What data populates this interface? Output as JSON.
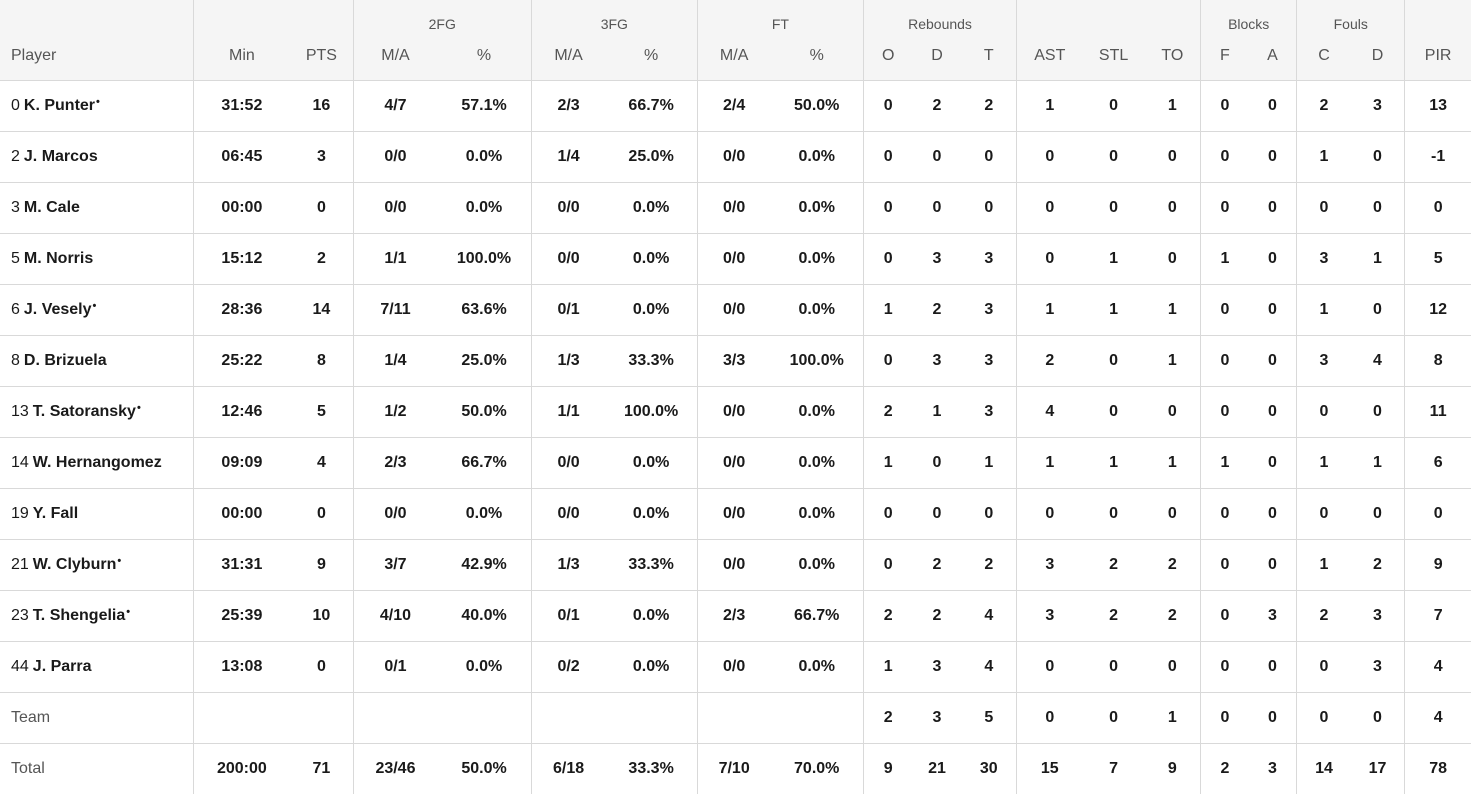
{
  "groups": {
    "g2fg": "2FG",
    "g3fg": "3FG",
    "gft": "FT",
    "greb": "Rebounds",
    "gblk": "Blocks",
    "gfoul": "Fouls"
  },
  "columns": [
    "Player",
    "Min",
    "PTS",
    "M/A",
    "%",
    "M/A",
    "%",
    "M/A",
    "%",
    "O",
    "D",
    "T",
    "AST",
    "STL",
    "TO",
    "F",
    "A",
    "C",
    "D",
    "PIR"
  ],
  "players": [
    {
      "num": "0",
      "name": "K. Punter",
      "starter": true,
      "stats": [
        "31:52",
        "16",
        "4/7",
        "57.1%",
        "2/3",
        "66.7%",
        "2/4",
        "50.0%",
        "0",
        "2",
        "2",
        "1",
        "0",
        "1",
        "0",
        "0",
        "2",
        "3",
        "13"
      ]
    },
    {
      "num": "2",
      "name": "J. Marcos",
      "starter": false,
      "stats": [
        "06:45",
        "3",
        "0/0",
        "0.0%",
        "1/4",
        "25.0%",
        "0/0",
        "0.0%",
        "0",
        "0",
        "0",
        "0",
        "0",
        "0",
        "0",
        "0",
        "1",
        "0",
        "-1"
      ]
    },
    {
      "num": "3",
      "name": "M. Cale",
      "starter": false,
      "stats": [
        "00:00",
        "0",
        "0/0",
        "0.0%",
        "0/0",
        "0.0%",
        "0/0",
        "0.0%",
        "0",
        "0",
        "0",
        "0",
        "0",
        "0",
        "0",
        "0",
        "0",
        "0",
        "0"
      ]
    },
    {
      "num": "5",
      "name": "M. Norris",
      "starter": false,
      "stats": [
        "15:12",
        "2",
        "1/1",
        "100.0%",
        "0/0",
        "0.0%",
        "0/0",
        "0.0%",
        "0",
        "3",
        "3",
        "0",
        "1",
        "0",
        "1",
        "0",
        "3",
        "1",
        "5"
      ]
    },
    {
      "num": "6",
      "name": "J. Vesely",
      "starter": true,
      "stats": [
        "28:36",
        "14",
        "7/11",
        "63.6%",
        "0/1",
        "0.0%",
        "0/0",
        "0.0%",
        "1",
        "2",
        "3",
        "1",
        "1",
        "1",
        "0",
        "0",
        "1",
        "0",
        "12"
      ]
    },
    {
      "num": "8",
      "name": "D. Brizuela",
      "starter": false,
      "stats": [
        "25:22",
        "8",
        "1/4",
        "25.0%",
        "1/3",
        "33.3%",
        "3/3",
        "100.0%",
        "0",
        "3",
        "3",
        "2",
        "0",
        "1",
        "0",
        "0",
        "3",
        "4",
        "8"
      ]
    },
    {
      "num": "13",
      "name": "T. Satoransky",
      "starter": true,
      "stats": [
        "12:46",
        "5",
        "1/2",
        "50.0%",
        "1/1",
        "100.0%",
        "0/0",
        "0.0%",
        "2",
        "1",
        "3",
        "4",
        "0",
        "0",
        "0",
        "0",
        "0",
        "0",
        "11"
      ]
    },
    {
      "num": "14",
      "name": "W. Hernangomez",
      "starter": false,
      "stats": [
        "09:09",
        "4",
        "2/3",
        "66.7%",
        "0/0",
        "0.0%",
        "0/0",
        "0.0%",
        "1",
        "0",
        "1",
        "1",
        "1",
        "1",
        "1",
        "0",
        "1",
        "1",
        "6"
      ]
    },
    {
      "num": "19",
      "name": "Y. Fall",
      "starter": false,
      "stats": [
        "00:00",
        "0",
        "0/0",
        "0.0%",
        "0/0",
        "0.0%",
        "0/0",
        "0.0%",
        "0",
        "0",
        "0",
        "0",
        "0",
        "0",
        "0",
        "0",
        "0",
        "0",
        "0"
      ]
    },
    {
      "num": "21",
      "name": "W. Clyburn",
      "starter": true,
      "stats": [
        "31:31",
        "9",
        "3/7",
        "42.9%",
        "1/3",
        "33.3%",
        "0/0",
        "0.0%",
        "0",
        "2",
        "2",
        "3",
        "2",
        "2",
        "0",
        "0",
        "1",
        "2",
        "9"
      ]
    },
    {
      "num": "23",
      "name": "T. Shengelia",
      "starter": true,
      "stats": [
        "25:39",
        "10",
        "4/10",
        "40.0%",
        "0/1",
        "0.0%",
        "2/3",
        "66.7%",
        "2",
        "2",
        "4",
        "3",
        "2",
        "2",
        "0",
        "3",
        "2",
        "3",
        "7"
      ]
    },
    {
      "num": "44",
      "name": "J. Parra",
      "starter": false,
      "stats": [
        "13:08",
        "0",
        "0/1",
        "0.0%",
        "0/2",
        "0.0%",
        "0/0",
        "0.0%",
        "1",
        "3",
        "4",
        "0",
        "0",
        "0",
        "0",
        "0",
        "0",
        "3",
        "4"
      ]
    }
  ],
  "team": {
    "label": "Team",
    "stats": [
      "",
      "",
      "",
      "",
      "",
      "",
      "",
      "",
      "2",
      "3",
      "5",
      "0",
      "0",
      "1",
      "0",
      "0",
      "0",
      "0",
      "4"
    ]
  },
  "total": {
    "label": "Total",
    "stats": [
      "200:00",
      "71",
      "23/46",
      "50.0%",
      "6/18",
      "33.3%",
      "7/10",
      "70.0%",
      "9",
      "21",
      "30",
      "15",
      "7",
      "9",
      "2",
      "3",
      "14",
      "17",
      "78"
    ]
  },
  "starter_mark": "•"
}
